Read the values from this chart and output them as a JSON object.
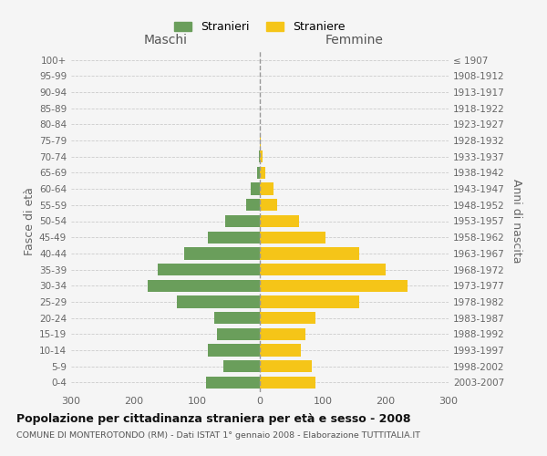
{
  "age_groups": [
    "0-4",
    "5-9",
    "10-14",
    "15-19",
    "20-24",
    "25-29",
    "30-34",
    "35-39",
    "40-44",
    "45-49",
    "50-54",
    "55-59",
    "60-64",
    "65-69",
    "70-74",
    "75-79",
    "80-84",
    "85-89",
    "90-94",
    "95-99",
    "100+"
  ],
  "birth_years": [
    "2003-2007",
    "1998-2002",
    "1993-1997",
    "1988-1992",
    "1983-1987",
    "1978-1982",
    "1973-1977",
    "1968-1972",
    "1963-1967",
    "1958-1962",
    "1953-1957",
    "1948-1952",
    "1943-1947",
    "1938-1942",
    "1933-1937",
    "1928-1932",
    "1923-1927",
    "1918-1922",
    "1913-1917",
    "1908-1912",
    "≤ 1907"
  ],
  "maschi": [
    85,
    58,
    82,
    68,
    72,
    132,
    178,
    162,
    120,
    82,
    55,
    22,
    15,
    5,
    2,
    0,
    0,
    0,
    0,
    0,
    0
  ],
  "femmine": [
    88,
    82,
    65,
    72,
    88,
    158,
    235,
    200,
    158,
    105,
    62,
    28,
    22,
    8,
    4,
    2,
    0,
    0,
    0,
    0,
    0
  ],
  "maschi_color": "#6a9e5b",
  "femmine_color": "#f5c518",
  "title": "Popolazione per cittadinanza straniera per età e sesso - 2008",
  "subtitle": "COMUNE DI MONTEROTONDO (RM) - Dati ISTAT 1° gennaio 2008 - Elaborazione TUTTITALIA.IT",
  "xlabel_left": "Maschi",
  "xlabel_right": "Femmine",
  "ylabel_left": "Fasce di età",
  "ylabel_right": "Anni di nascita",
  "legend_stranieri": "Stranieri",
  "legend_straniere": "Straniere",
  "xlim": 300,
  "bg_color": "#f5f5f5",
  "grid_color": "#cccccc",
  "centerline_color": "#999999"
}
